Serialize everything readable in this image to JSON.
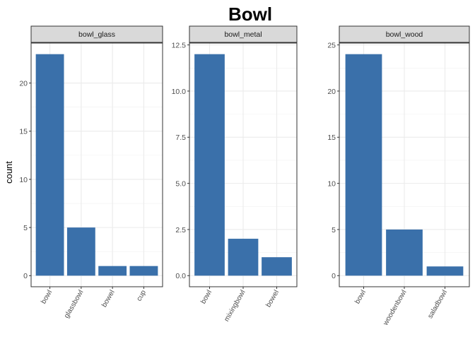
{
  "chart_data": {
    "type": "bar",
    "title": "Bowl",
    "ylabel": "count",
    "bar_color": "#3A70AA",
    "strip_color": "#D9D9D9",
    "grid": true,
    "panels": [
      {
        "strip": "bowl_glass",
        "categories": [
          "bowl",
          "glassbowl",
          "bowel",
          "cup"
        ],
        "values": [
          23,
          5,
          1,
          1
        ],
        "ylim": [
          -1.15,
          24.15
        ],
        "yticks": [
          0,
          5,
          10,
          15,
          20
        ],
        "ytick_labels": [
          "0",
          "5",
          "10",
          "15",
          "20"
        ]
      },
      {
        "strip": "bowl_metal",
        "categories": [
          "bowl",
          "mixingbowl",
          "bowel"
        ],
        "values": [
          12,
          2,
          1
        ],
        "ylim": [
          -0.6,
          12.6
        ],
        "yticks": [
          0,
          2.5,
          5,
          7.5,
          10,
          12.5
        ],
        "ytick_labels": [
          "0.0",
          "2.5",
          "5.0",
          "7.5",
          "10.0",
          "12.5"
        ]
      },
      {
        "strip": "bowl_wood",
        "categories": [
          "bowl",
          "woodenbowl",
          "saladbowl"
        ],
        "values": [
          24,
          5,
          1
        ],
        "ylim": [
          -1.2,
          25.2
        ],
        "yticks": [
          0,
          5,
          10,
          15,
          20,
          25
        ],
        "ytick_labels": [
          "0",
          "5",
          "10",
          "15",
          "20",
          "25"
        ]
      }
    ]
  }
}
